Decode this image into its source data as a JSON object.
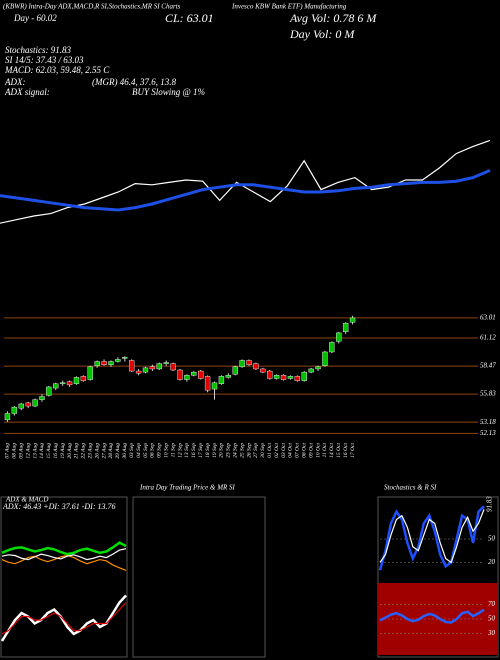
{
  "header": {
    "lines": [
      "(KBWR) Intra-Day ADX,MACD,R SI,Stochastics,MR SI Charts",
      "Invesco KBW Bank ETF) Manufacturing",
      "Day - 60.02",
      "CL: 63.01",
      "Avg Vol: 0.78 6 M",
      "Day Vol: 0 M",
      "Stochastics: 91.83",
      "SI 14/5: 37.43 / 63.03",
      "MACD: 62.03, 59.48, 2.55 C",
      "ADX:",
      "(MGR) 46.4, 37.6, 13.8",
      "ADX signal:",
      "BUY Slowing @ 1%"
    ],
    "intraday_title": "Intra Day Trading Price & MR SI"
  },
  "chart_data": [
    {
      "type": "candlestick",
      "x": [
        "07 Aug",
        "08 Aug",
        "09 Aug",
        "12 Aug",
        "13 Aug",
        "14 Aug",
        "15 Aug",
        "16 Aug",
        "19 Aug",
        "20 Aug",
        "21 Aug",
        "22 Aug",
        "23 Aug",
        "26 Aug",
        "27 Aug",
        "28 Aug",
        "29 Aug",
        "30 Aug",
        "03 Sep",
        "04 Sep",
        "05 Sep",
        "06 Sep",
        "09 Sep",
        "10 Sep",
        "11 Sep",
        "12 Sep",
        "13 Sep",
        "16 Sep",
        "17 Sep",
        "18 Sep",
        "19 Sep",
        "20 Sep",
        "23 Sep",
        "24 Sep",
        "25 Sep",
        "26 Sep",
        "27 Sep",
        "30 Sep",
        "01 Oct",
        "02 Oct",
        "03 Oct",
        "04 Oct",
        "07 Oct",
        "08 Oct",
        "09 Oct",
        "10 Oct",
        "11 Oct",
        "14 Oct",
        "15 Oct",
        "16 Oct",
        "17 Oct"
      ],
      "open": [
        53.4,
        54.0,
        54.5,
        55.0,
        54.7,
        55.3,
        55.7,
        56.4,
        56.8,
        57.0,
        56.8,
        57.5,
        57.2,
        58.5,
        58.9,
        58.6,
        58.9,
        59.2,
        59.0,
        58.0,
        57.9,
        58.4,
        58.2,
        58.7,
        58.7,
        58.1,
        57.2,
        57.6,
        58.0,
        57.5,
        56.3,
        56.8,
        57.4,
        57.7,
        58.4,
        59.0,
        58.7,
        58.2,
        58.0,
        57.3,
        57.6,
        57.3,
        57.5,
        57.1,
        57.9,
        58.2,
        58.5,
        59.8,
        60.8,
        61.7,
        62.6
      ],
      "high": [
        54.2,
        54.7,
        55.0,
        55.1,
        55.4,
        55.8,
        56.6,
        56.9,
        57.1,
        57.1,
        57.5,
        57.6,
        58.5,
        59.0,
        59.1,
        59.0,
        59.3,
        59.4,
        59.1,
        58.2,
        58.4,
        58.6,
        58.8,
        59.0,
        58.8,
        58.2,
        57.7,
        58.0,
        58.1,
        57.6,
        57.0,
        57.6,
        57.8,
        58.5,
        59.1,
        59.1,
        58.8,
        58.3,
        58.1,
        57.7,
        57.7,
        57.6,
        57.6,
        58.0,
        58.3,
        58.5,
        59.9,
        60.8,
        61.7,
        62.6,
        63.2
      ],
      "low": [
        53.2,
        53.8,
        54.3,
        54.5,
        54.6,
        55.1,
        55.6,
        56.2,
        56.6,
        56.5,
        56.7,
        57.0,
        57.1,
        58.3,
        58.5,
        58.4,
        58.8,
        58.9,
        57.9,
        57.6,
        57.8,
        58.0,
        58.1,
        58.5,
        58.0,
        57.1,
        57.0,
        57.5,
        57.2,
        56.0,
        55.3,
        56.7,
        57.3,
        57.6,
        58.3,
        58.5,
        58.1,
        57.8,
        57.2,
        57.2,
        57.1,
        57.2,
        57.0,
        57.0,
        57.8,
        58.0,
        58.4,
        59.7,
        60.6,
        61.5,
        62.4
      ],
      "close": [
        54.0,
        54.6,
        54.9,
        54.7,
        55.3,
        55.6,
        56.5,
        56.8,
        56.9,
        56.7,
        57.4,
        57.1,
        58.4,
        58.9,
        58.6,
        58.9,
        59.1,
        59.3,
        58.0,
        57.8,
        58.3,
        58.2,
        58.7,
        58.8,
        58.1,
        57.2,
        57.6,
        57.9,
        57.3,
        56.2,
        56.9,
        57.5,
        57.6,
        58.4,
        59.0,
        58.6,
        58.2,
        57.9,
        57.3,
        57.6,
        57.2,
        57.5,
        57.1,
        57.9,
        58.2,
        58.4,
        59.8,
        60.7,
        61.6,
        62.5,
        63.01
      ],
      "up_color": "#00c000",
      "down_color": "#e00000",
      "ylim": [
        51.5,
        64.7
      ],
      "yticks": [
        63.01,
        61.12,
        58.47,
        55.83,
        53.18,
        52.13
      ],
      "grid": true,
      "grid_color": "#8b4513"
    },
    {
      "type": "line",
      "ylim": [
        0,
        100
      ],
      "series": [
        {
          "color": "#ffffff",
          "values": [
            14,
            17,
            20,
            22,
            27,
            30,
            35,
            40,
            47,
            46,
            48,
            50,
            49,
            33,
            48,
            40,
            32,
            45,
            66,
            42,
            48,
            52,
            42,
            44,
            50,
            50,
            60,
            72,
            78,
            83
          ]
        },
        {
          "color": "#1e50e6",
          "values": [
            37,
            35,
            33,
            31,
            29,
            27,
            26,
            25,
            27,
            30,
            34,
            38,
            42,
            44,
            46,
            46,
            44,
            42,
            40,
            40,
            41,
            43,
            44,
            46,
            47,
            48,
            48,
            49,
            52,
            58
          ]
        }
      ]
    },
    {
      "type": "line",
      "title": "ADX & MACD",
      "subtitle": "ADX: 46.43 +DI: 37.61 -DI: 13.76",
      "ylim": [
        0,
        100
      ],
      "series": [
        {
          "color": "#00e000",
          "values": [
            40,
            44,
            47,
            48,
            45,
            42,
            44,
            47,
            45,
            41,
            38,
            40,
            44,
            46,
            43,
            40,
            42,
            48,
            55,
            50
          ]
        },
        {
          "color": "#ff8c00",
          "values": [
            30,
            26,
            24,
            28,
            33,
            35,
            30,
            27,
            30,
            34,
            36,
            33,
            28,
            24,
            27,
            30,
            28,
            22,
            18,
            14
          ]
        },
        {
          "color": "#ffffff",
          "values": [
            35,
            37,
            36,
            32,
            30,
            34,
            38,
            36,
            33,
            31,
            35,
            37,
            34,
            30,
            32,
            35,
            33,
            38,
            44,
            46
          ]
        }
      ]
    },
    {
      "type": "line",
      "ylim": [
        -1,
        1
      ],
      "series": [
        {
          "color": "#ffffff",
          "values": [
            -0.6,
            -0.3,
            0.0,
            0.2,
            0.1,
            -0.1,
            0.0,
            0.2,
            0.3,
            0.1,
            -0.2,
            -0.4,
            -0.3,
            -0.1,
            0.0,
            -0.2,
            -0.1,
            0.2,
            0.5,
            0.7
          ]
        },
        {
          "color": "#e00000",
          "values": [
            -0.4,
            -0.3,
            -0.1,
            0.1,
            0.1,
            0.0,
            0.0,
            0.1,
            0.2,
            0.1,
            -0.1,
            -0.3,
            -0.3,
            -0.2,
            -0.1,
            -0.1,
            -0.1,
            0.1,
            0.3,
            0.5
          ]
        }
      ]
    },
    {
      "type": "line",
      "title": "Stochastics & R SI",
      "ylim": [
        0,
        100
      ],
      "yticks": [
        20,
        50
      ],
      "annotation": "91.83",
      "series": [
        {
          "color": "#1e50ff",
          "values": [
            10,
            35,
            70,
            85,
            75,
            45,
            25,
            40,
            70,
            80,
            60,
            30,
            15,
            20,
            50,
            80,
            75,
            45,
            85,
            92
          ]
        },
        {
          "color": "#ffffff",
          "values": [
            20,
            30,
            55,
            75,
            80,
            65,
            40,
            35,
            55,
            75,
            70,
            45,
            25,
            20,
            40,
            65,
            78,
            60,
            70,
            88
          ]
        }
      ]
    },
    {
      "type": "line",
      "ylim": [
        0,
        100
      ],
      "yticks": [
        30,
        50,
        70
      ],
      "background": "#a00000",
      "series": [
        {
          "color": "#2860ff",
          "values": [
            48,
            52,
            56,
            58,
            55,
            50,
            47,
            49,
            54,
            57,
            55,
            50,
            46,
            45,
            50,
            58,
            60,
            54,
            58,
            63
          ]
        }
      ]
    }
  ]
}
